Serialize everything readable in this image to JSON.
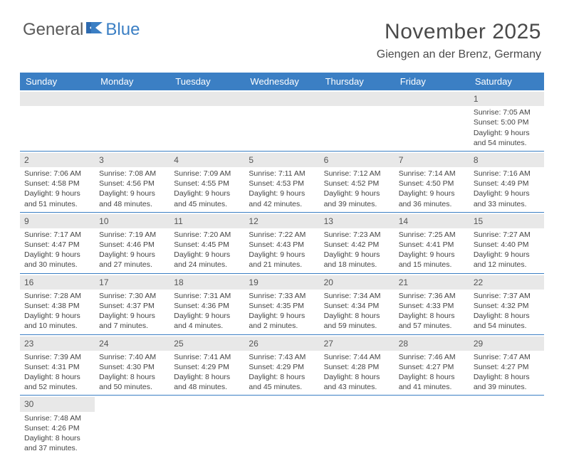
{
  "brand": {
    "part1": "General",
    "part2": "Blue"
  },
  "title": "November 2025",
  "location": "Giengen an der Brenz, Germany",
  "colors": {
    "header_bg": "#3b7fc4",
    "header_text": "#ffffff",
    "daynum_bg": "#e8e8e8",
    "row_border": "#3b7fc4",
    "text": "#444444"
  },
  "day_headers": [
    "Sunday",
    "Monday",
    "Tuesday",
    "Wednesday",
    "Thursday",
    "Friday",
    "Saturday"
  ],
  "weeks": [
    [
      null,
      null,
      null,
      null,
      null,
      null,
      {
        "n": "1",
        "sunrise": "7:05 AM",
        "sunset": "5:00 PM",
        "daylight": "9 hours and 54 minutes."
      }
    ],
    [
      {
        "n": "2",
        "sunrise": "7:06 AM",
        "sunset": "4:58 PM",
        "daylight": "9 hours and 51 minutes."
      },
      {
        "n": "3",
        "sunrise": "7:08 AM",
        "sunset": "4:56 PM",
        "daylight": "9 hours and 48 minutes."
      },
      {
        "n": "4",
        "sunrise": "7:09 AM",
        "sunset": "4:55 PM",
        "daylight": "9 hours and 45 minutes."
      },
      {
        "n": "5",
        "sunrise": "7:11 AM",
        "sunset": "4:53 PM",
        "daylight": "9 hours and 42 minutes."
      },
      {
        "n": "6",
        "sunrise": "7:12 AM",
        "sunset": "4:52 PM",
        "daylight": "9 hours and 39 minutes."
      },
      {
        "n": "7",
        "sunrise": "7:14 AM",
        "sunset": "4:50 PM",
        "daylight": "9 hours and 36 minutes."
      },
      {
        "n": "8",
        "sunrise": "7:16 AM",
        "sunset": "4:49 PM",
        "daylight": "9 hours and 33 minutes."
      }
    ],
    [
      {
        "n": "9",
        "sunrise": "7:17 AM",
        "sunset": "4:47 PM",
        "daylight": "9 hours and 30 minutes."
      },
      {
        "n": "10",
        "sunrise": "7:19 AM",
        "sunset": "4:46 PM",
        "daylight": "9 hours and 27 minutes."
      },
      {
        "n": "11",
        "sunrise": "7:20 AM",
        "sunset": "4:45 PM",
        "daylight": "9 hours and 24 minutes."
      },
      {
        "n": "12",
        "sunrise": "7:22 AM",
        "sunset": "4:43 PM",
        "daylight": "9 hours and 21 minutes."
      },
      {
        "n": "13",
        "sunrise": "7:23 AM",
        "sunset": "4:42 PM",
        "daylight": "9 hours and 18 minutes."
      },
      {
        "n": "14",
        "sunrise": "7:25 AM",
        "sunset": "4:41 PM",
        "daylight": "9 hours and 15 minutes."
      },
      {
        "n": "15",
        "sunrise": "7:27 AM",
        "sunset": "4:40 PM",
        "daylight": "9 hours and 12 minutes."
      }
    ],
    [
      {
        "n": "16",
        "sunrise": "7:28 AM",
        "sunset": "4:38 PM",
        "daylight": "9 hours and 10 minutes."
      },
      {
        "n": "17",
        "sunrise": "7:30 AM",
        "sunset": "4:37 PM",
        "daylight": "9 hours and 7 minutes."
      },
      {
        "n": "18",
        "sunrise": "7:31 AM",
        "sunset": "4:36 PM",
        "daylight": "9 hours and 4 minutes."
      },
      {
        "n": "19",
        "sunrise": "7:33 AM",
        "sunset": "4:35 PM",
        "daylight": "9 hours and 2 minutes."
      },
      {
        "n": "20",
        "sunrise": "7:34 AM",
        "sunset": "4:34 PM",
        "daylight": "8 hours and 59 minutes."
      },
      {
        "n": "21",
        "sunrise": "7:36 AM",
        "sunset": "4:33 PM",
        "daylight": "8 hours and 57 minutes."
      },
      {
        "n": "22",
        "sunrise": "7:37 AM",
        "sunset": "4:32 PM",
        "daylight": "8 hours and 54 minutes."
      }
    ],
    [
      {
        "n": "23",
        "sunrise": "7:39 AM",
        "sunset": "4:31 PM",
        "daylight": "8 hours and 52 minutes."
      },
      {
        "n": "24",
        "sunrise": "7:40 AM",
        "sunset": "4:30 PM",
        "daylight": "8 hours and 50 minutes."
      },
      {
        "n": "25",
        "sunrise": "7:41 AM",
        "sunset": "4:29 PM",
        "daylight": "8 hours and 48 minutes."
      },
      {
        "n": "26",
        "sunrise": "7:43 AM",
        "sunset": "4:29 PM",
        "daylight": "8 hours and 45 minutes."
      },
      {
        "n": "27",
        "sunrise": "7:44 AM",
        "sunset": "4:28 PM",
        "daylight": "8 hours and 43 minutes."
      },
      {
        "n": "28",
        "sunrise": "7:46 AM",
        "sunset": "4:27 PM",
        "daylight": "8 hours and 41 minutes."
      },
      {
        "n": "29",
        "sunrise": "7:47 AM",
        "sunset": "4:27 PM",
        "daylight": "8 hours and 39 minutes."
      }
    ],
    [
      {
        "n": "30",
        "sunrise": "7:48 AM",
        "sunset": "4:26 PM",
        "daylight": "8 hours and 37 minutes."
      },
      null,
      null,
      null,
      null,
      null,
      null
    ]
  ]
}
